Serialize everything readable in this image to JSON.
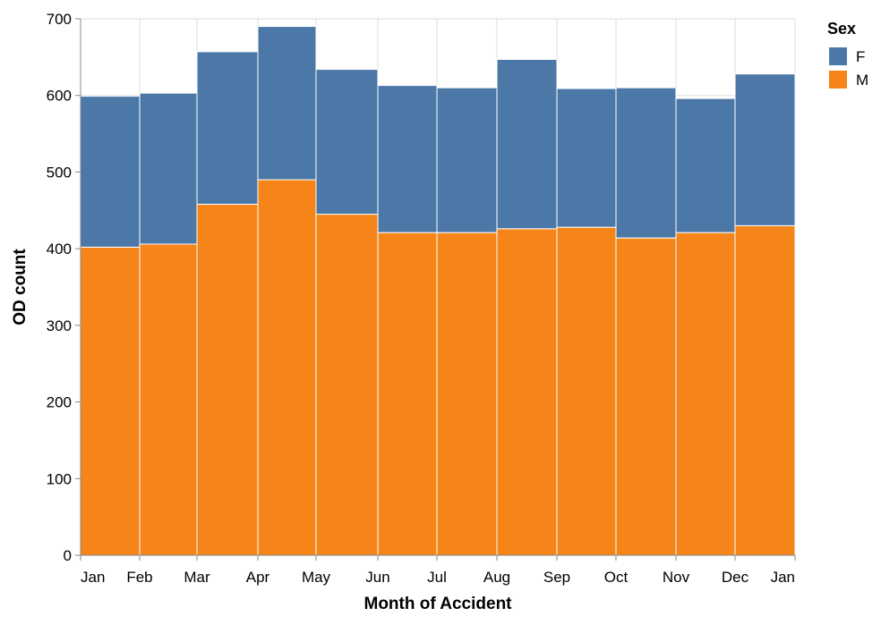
{
  "chart_data": {
    "type": "bar",
    "stacked": true,
    "xlabel": "Month of Accident",
    "ylabel": "OD count",
    "ylim": [
      0,
      700
    ],
    "yticks": [
      0,
      100,
      200,
      300,
      400,
      500,
      600,
      700
    ],
    "categories": [
      "Jan",
      "Feb",
      "Mar",
      "Apr",
      "May",
      "Jun",
      "Jul",
      "Aug",
      "Sep",
      "Oct",
      "Nov",
      "Dec"
    ],
    "xtick_labels": [
      "Jan",
      "Feb",
      "Mar",
      "Apr",
      "May",
      "Jun",
      "Jul",
      "Aug",
      "Sep",
      "Oct",
      "Nov",
      "Dec",
      "Jan"
    ],
    "series": [
      {
        "name": "M",
        "color": "#f58518",
        "values": [
          402,
          406,
          458,
          490,
          445,
          421,
          421,
          426,
          428,
          414,
          421,
          430
        ]
      },
      {
        "name": "F",
        "color": "#4c78a8",
        "values": [
          197,
          197,
          199,
          200,
          189,
          192,
          189,
          221,
          181,
          196,
          175,
          198
        ]
      }
    ],
    "grid": true,
    "legend": {
      "title": "Sex",
      "position": "top-right",
      "entries": [
        {
          "label": "F",
          "color": "#4c78a8"
        },
        {
          "label": "M",
          "color": "#f58518"
        }
      ]
    }
  }
}
